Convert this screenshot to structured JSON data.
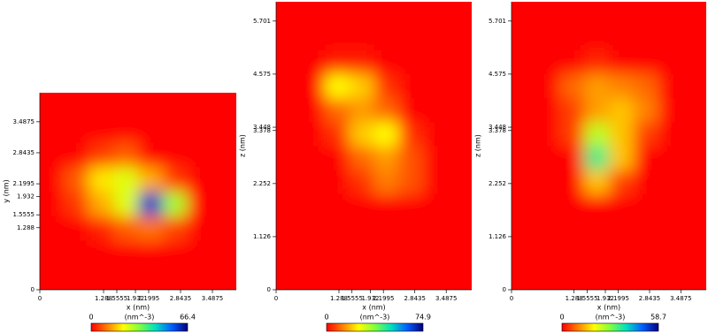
{
  "chart_data": [
    {
      "type": "heatmap",
      "xlabel": "x (nm)",
      "ylabel": "y (nm)",
      "xlim": [
        0,
        3.97
      ],
      "ylim": [
        0,
        4.09
      ],
      "xticks": [
        0,
        1.288,
        1.5555,
        1.932,
        2.1995,
        2.8435,
        3.4875
      ],
      "yticks": [
        0,
        1.288,
        1.5555,
        1.932,
        2.1995,
        2.8435,
        3.4875
      ],
      "values": [
        [
          0,
          0,
          0,
          0,
          0,
          0,
          0,
          0
        ],
        [
          0,
          0,
          0,
          0,
          0,
          0,
          0,
          0
        ],
        [
          0,
          0,
          3,
          8,
          10,
          6,
          0,
          0
        ],
        [
          0,
          5,
          15,
          25,
          60,
          30,
          0,
          0
        ],
        [
          0,
          8,
          20,
          25,
          15,
          5,
          0,
          0
        ],
        [
          0,
          0,
          5,
          8,
          0,
          0,
          0,
          0
        ],
        [
          0,
          0,
          0,
          0,
          0,
          0,
          0,
          0
        ],
        [
          0,
          0,
          0,
          0,
          0,
          0,
          0,
          0
        ]
      ],
      "colormap": [
        "#ff0000",
        "#ff8000",
        "#ffff00",
        "#80ff40",
        "#00e0c0",
        "#0060ff",
        "#000080"
      ],
      "colorbar": {
        "min": 0,
        "max": 66.4,
        "label": "(nm^-3)"
      }
    },
    {
      "type": "heatmap",
      "xlabel": "x (nm)",
      "ylabel": "z (nm)",
      "xlim": [
        0,
        4.01
      ],
      "ylim": [
        0,
        6.11
      ],
      "xticks": [
        0,
        1.288,
        1.5555,
        1.932,
        2.1995,
        2.8435,
        3.4875
      ],
      "yticks": [
        0,
        1.126,
        2.252,
        3.378,
        3.448,
        4.575,
        5.701
      ],
      "values": [
        [
          0,
          0,
          0,
          0,
          0,
          0,
          0,
          0
        ],
        [
          0,
          0,
          0,
          0,
          0,
          0,
          0,
          0
        ],
        [
          0,
          0,
          0,
          0,
          0,
          0,
          0,
          0
        ],
        [
          0,
          0,
          0,
          0,
          0,
          0,
          0,
          0
        ],
        [
          0,
          0,
          0,
          5,
          12,
          8,
          0,
          0
        ],
        [
          0,
          0,
          0,
          10,
          15,
          8,
          0,
          0
        ],
        [
          0,
          0,
          5,
          20,
          25,
          5,
          0,
          0
        ],
        [
          0,
          0,
          10,
          15,
          10,
          0,
          0,
          0
        ],
        [
          0,
          0,
          25,
          20,
          5,
          0,
          0,
          0
        ],
        [
          0,
          0,
          3,
          3,
          0,
          0,
          0,
          0
        ],
        [
          0,
          0,
          0,
          0,
          0,
          0,
          0,
          0
        ],
        [
          0,
          0,
          0,
          0,
          0,
          0,
          0,
          0
        ]
      ],
      "colormap": [
        "#ff0000",
        "#ff8000",
        "#ffff00",
        "#80ff40",
        "#00e0c0",
        "#0060ff",
        "#000080"
      ],
      "colorbar": {
        "min": 0,
        "max": 74.9,
        "label": "(nm^-3)"
      }
    },
    {
      "type": "heatmap",
      "xlabel": "x (nm)",
      "ylabel": "z (nm)",
      "xlim": [
        0,
        4.01
      ],
      "ylim": [
        0,
        6.11
      ],
      "xticks": [
        0,
        1.288,
        1.5555,
        1.932,
        2.1995,
        2.8435,
        3.4875
      ],
      "yticks": [
        0,
        1.126,
        2.252,
        3.378,
        3.448,
        4.575,
        5.701
      ],
      "values": [
        [
          0,
          0,
          0,
          0,
          0,
          0,
          0,
          0
        ],
        [
          0,
          0,
          0,
          0,
          0,
          0,
          0,
          0
        ],
        [
          0,
          0,
          0,
          0,
          0,
          0,
          0,
          0
        ],
        [
          0,
          0,
          0,
          0,
          0,
          0,
          0,
          0
        ],
        [
          0,
          0,
          0,
          15,
          5,
          0,
          0,
          0
        ],
        [
          0,
          0,
          0,
          35,
          15,
          0,
          0,
          0
        ],
        [
          0,
          0,
          5,
          25,
          15,
          5,
          0,
          0
        ],
        [
          0,
          0,
          5,
          12,
          15,
          10,
          0,
          0
        ],
        [
          0,
          0,
          8,
          12,
          10,
          8,
          0,
          0
        ],
        [
          0,
          0,
          0,
          3,
          0,
          0,
          0,
          0
        ],
        [
          0,
          0,
          0,
          0,
          0,
          0,
          0,
          0
        ],
        [
          0,
          0,
          0,
          0,
          0,
          0,
          0,
          0
        ]
      ],
      "colormap": [
        "#ff0000",
        "#ff8000",
        "#ffff00",
        "#80ff40",
        "#00e0c0",
        "#0060ff",
        "#000080"
      ],
      "colorbar": {
        "min": 0,
        "max": 58.7,
        "label": "(nm^-3)"
      }
    }
  ]
}
